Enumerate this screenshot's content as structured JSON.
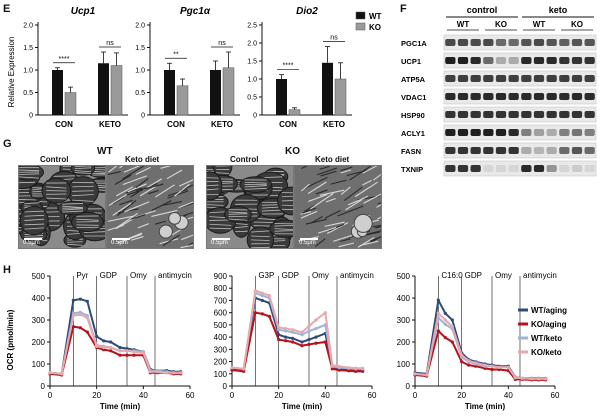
{
  "panels": {
    "E": "E",
    "F": "F",
    "G": "G",
    "H": "H"
  },
  "panel_e": {
    "ylabel": "Relative Expression",
    "legend": [
      "WT",
      "KO"
    ],
    "charts": [
      {
        "title": "Ucp1",
        "ylim": [
          0,
          2.0
        ],
        "yticks": [
          "0",
          "0.5",
          "1.0",
          "1.5",
          "2.0"
        ],
        "categories": [
          "CON",
          "KETO"
        ],
        "wt": [
          1.0,
          1.15
        ],
        "ko": [
          0.5,
          1.1
        ],
        "wt_err": [
          0.05,
          0.25
        ],
        "ko_err": [
          0.12,
          0.28
        ],
        "sig": [
          "****",
          "ns"
        ]
      },
      {
        "title": "Pgc1α",
        "ylim": [
          0,
          2.0
        ],
        "yticks": [
          "0",
          "0.5",
          "1.0",
          "1.5",
          "2.0"
        ],
        "categories": [
          "CON",
          "KETO"
        ],
        "wt": [
          1.0,
          1.0
        ],
        "ko": [
          0.65,
          1.05
        ],
        "wt_err": [
          0.15,
          0.2
        ],
        "ko_err": [
          0.15,
          0.35
        ],
        "sig": [
          "**",
          "ns"
        ]
      },
      {
        "title": "Dio2",
        "ylim": [
          0,
          2.5
        ],
        "yticks": [
          "0",
          "0.5",
          "1.0",
          "1.5",
          "2.0",
          "2.5"
        ],
        "categories": [
          "CON",
          "KETO"
        ],
        "wt": [
          1.0,
          1.45
        ],
        "ko": [
          0.15,
          1.0
        ],
        "wt_err": [
          0.12,
          0.45
        ],
        "ko_err": [
          0.05,
          0.45
        ],
        "sig": [
          "****",
          "ns"
        ]
      }
    ]
  },
  "panel_f": {
    "groups": [
      "control",
      "keto"
    ],
    "subgroups": [
      "WT",
      "KO",
      "WT",
      "KO"
    ],
    "bands": [
      {
        "name": "PGC1A",
        "intensity": [
          0.75,
          0.75,
          0.75,
          0.75,
          0.6,
          0.6,
          0.7,
          0.75,
          0.7,
          0.65,
          0.7,
          0.7
        ]
      },
      {
        "name": "UCP1",
        "intensity": [
          0.95,
          0.95,
          0.9,
          0.6,
          0.3,
          0.3,
          0.9,
          0.9,
          0.9,
          0.85,
          0.85,
          0.85
        ]
      },
      {
        "name": "ATP5A",
        "intensity": [
          0.8,
          0.8,
          0.8,
          0.8,
          0.8,
          0.8,
          0.8,
          0.8,
          0.8,
          0.8,
          0.8,
          0.8
        ]
      },
      {
        "name": "VDAC1",
        "intensity": [
          0.9,
          0.9,
          0.9,
          0.9,
          0.9,
          0.9,
          0.9,
          0.9,
          0.9,
          0.9,
          0.9,
          0.9
        ]
      },
      {
        "name": "HSP90",
        "intensity": [
          0.85,
          0.85,
          0.85,
          0.85,
          0.85,
          0.85,
          0.85,
          0.85,
          0.85,
          0.85,
          0.85,
          0.85
        ]
      },
      {
        "name": "ACLY1",
        "intensity": [
          0.95,
          0.95,
          0.95,
          0.95,
          0.95,
          0.9,
          0.5,
          0.35,
          0.3,
          0.5,
          0.55,
          0.5
        ]
      },
      {
        "name": "FASN",
        "intensity": [
          0.85,
          0.85,
          0.85,
          0.85,
          0.85,
          0.85,
          0.3,
          0.25,
          0.3,
          0.6,
          0.7,
          0.6
        ]
      },
      {
        "name": "TXNIP",
        "intensity": [
          0.85,
          0.85,
          0.85,
          0.1,
          0.1,
          0.1,
          0.9,
          0.9,
          0.4,
          0.1,
          0.15,
          0.1
        ]
      }
    ]
  },
  "panel_g": {
    "groups": [
      {
        "title": "WT",
        "images": [
          {
            "label": "Control",
            "scale": "0.5μm"
          },
          {
            "label": "Keto diet",
            "scale": "0.5μm"
          }
        ]
      },
      {
        "title": "KO",
        "images": [
          {
            "label": "Control",
            "scale": "0.5μm"
          },
          {
            "label": "Keto diet",
            "scale": "0.5μm"
          }
        ]
      }
    ]
  },
  "panel_h": {
    "ylabel": "OCR (pmol/min)",
    "xlabel": "Time (min)",
    "xticks": [
      "0",
      "20",
      "40",
      "60"
    ],
    "colors": {
      "wt_aging": "#2f4b7c",
      "ko_aging": "#b5121b",
      "wt_keto": "#9db3da",
      "ko_keto": "#e6a9ae"
    },
    "legend": [
      "WT/aging",
      "KO/aging",
      "WT/keto",
      "KO/keto"
    ],
    "time": [
      0,
      5,
      10,
      13,
      16,
      20,
      23,
      26,
      30,
      33,
      36,
      40,
      43,
      46,
      50,
      53,
      56
    ],
    "charts": [
      {
        "injections": [
          "Pyr",
          "GDP",
          "Omy",
          "antimycin"
        ],
        "ylim": [
          0,
          500
        ],
        "yticks": [
          "0",
          "100",
          "200",
          "300",
          "400",
          "500"
        ],
        "series": {
          "wt_aging": [
            60,
            55,
            390,
            395,
            385,
            225,
            205,
            200,
            175,
            170,
            165,
            155,
            75,
            70,
            70,
            65,
            65
          ],
          "ko_aging": [
            55,
            50,
            270,
            265,
            245,
            175,
            165,
            160,
            140,
            140,
            140,
            140,
            60,
            60,
            60,
            55,
            55
          ],
          "wt_keto": [
            60,
            55,
            330,
            335,
            320,
            185,
            180,
            175,
            160,
            160,
            160,
            155,
            70,
            70,
            65,
            60,
            60
          ],
          "ko_keto": [
            60,
            55,
            320,
            325,
            310,
            180,
            175,
            175,
            160,
            160,
            155,
            150,
            65,
            65,
            60,
            60,
            60
          ]
        }
      },
      {
        "injections": [
          "G3P",
          "GDP",
          "Omy",
          "antimycin"
        ],
        "ylim": [
          0,
          900
        ],
        "yticks": [
          "0",
          "100",
          "200",
          "300",
          "400",
          "500",
          "600",
          "700",
          "800",
          "900"
        ],
        "series": {
          "wt_aging": [
            140,
            130,
            720,
            700,
            680,
            420,
            400,
            390,
            360,
            380,
            400,
            430,
            150,
            140,
            135,
            130,
            130
          ],
          "ko_aging": [
            130,
            120,
            600,
            590,
            570,
            380,
            370,
            360,
            330,
            340,
            350,
            360,
            140,
            130,
            125,
            120,
            120
          ],
          "wt_keto": [
            150,
            140,
            760,
            740,
            720,
            460,
            450,
            440,
            420,
            450,
            470,
            500,
            160,
            150,
            145,
            140,
            140
          ],
          "ko_keto": [
            150,
            140,
            780,
            760,
            740,
            480,
            470,
            460,
            440,
            490,
            540,
            600,
            170,
            160,
            150,
            145,
            145
          ]
        }
      },
      {
        "injections": [
          "C16:0",
          "GDP",
          "Omy",
          "antimycin"
        ],
        "ylim": [
          0,
          500
        ],
        "yticks": [
          "0",
          "100",
          "200",
          "300",
          "400",
          "500"
        ],
        "series": {
          "wt_aging": [
            60,
            55,
            390,
            330,
            300,
            150,
            120,
            110,
            100,
            95,
            90,
            90,
            40,
            35,
            35,
            35,
            35
          ],
          "ko_aging": [
            50,
            45,
            250,
            220,
            200,
            110,
            95,
            90,
            80,
            75,
            75,
            70,
            30,
            30,
            28,
            28,
            28
          ],
          "wt_keto": [
            55,
            50,
            310,
            280,
            260,
            130,
            110,
            100,
            90,
            90,
            85,
            85,
            38,
            35,
            33,
            33,
            33
          ],
          "ko_keto": [
            55,
            50,
            330,
            300,
            270,
            140,
            115,
            105,
            95,
            90,
            85,
            85,
            38,
            35,
            33,
            33,
            33
          ]
        }
      }
    ]
  }
}
